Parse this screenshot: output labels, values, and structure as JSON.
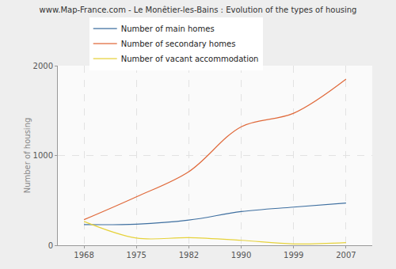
{
  "chart_data": {
    "type": "line",
    "title": "www.Map-France.com - Le Monêtier-les-Bains : Evolution of the types of housing",
    "y_label": "Number of housing",
    "categories": [
      "1968",
      "1975",
      "1982",
      "1990",
      "1999",
      "2007"
    ],
    "series": [
      {
        "name": "Number of main homes",
        "color": "#3e6fa0",
        "values": [
          230,
          235,
          280,
          375,
          425,
          470
        ]
      },
      {
        "name": "Number of secondary homes",
        "color": "#e0693a",
        "values": [
          285,
          540,
          820,
          1320,
          1470,
          1850
        ]
      },
      {
        "name": "Number of vacant accommodation",
        "color": "#e6d23b",
        "values": [
          265,
          80,
          85,
          55,
          15,
          30
        ]
      }
    ],
    "ylim": [
      0,
      2000
    ],
    "yticks": [
      0,
      1000,
      2000
    ],
    "grid": true,
    "legend": "top-left",
    "line_style": "smooth"
  }
}
